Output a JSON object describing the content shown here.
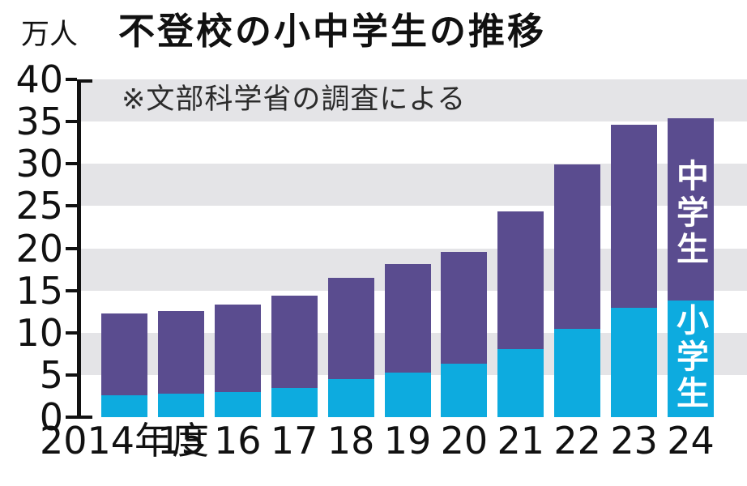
{
  "chart_data": {
    "type": "bar",
    "stacked": true,
    "title": "不登校の小中学生の推移",
    "unit_label": "万人",
    "note": "※文部科学省の調査による",
    "categories": [
      "2014年度",
      "15",
      "16",
      "17",
      "18",
      "19",
      "20",
      "21",
      "22",
      "23",
      "24"
    ],
    "series": [
      {
        "name": "小学生",
        "color": "#0dabdf",
        "values": [
          2.6,
          2.8,
          3.0,
          3.5,
          4.5,
          5.3,
          6.3,
          8.1,
          10.5,
          13.0,
          13.8
        ]
      },
      {
        "name": "中学生",
        "color": "#5a4c8f",
        "values": [
          9.7,
          9.8,
          10.3,
          10.9,
          12.0,
          12.8,
          13.3,
          16.3,
          19.4,
          21.6,
          21.6
        ]
      }
    ],
    "totals": [
      12.3,
      12.6,
      13.3,
      14.4,
      16.5,
      18.1,
      19.6,
      24.4,
      29.9,
      34.6,
      35.4
    ],
    "ylim": [
      0,
      40
    ],
    "yticks": [
      0,
      5,
      10,
      15,
      20,
      25,
      30,
      35,
      40
    ],
    "grid": "alternating-horizontal-stripes",
    "legend_position": "inside-last-bar",
    "colors": {
      "elementary": "#0dabdf",
      "junior_high": "#5a4c8f",
      "stripe": "#e4e4e7",
      "axis": "#111111",
      "legend_text": "#ffffff"
    }
  }
}
